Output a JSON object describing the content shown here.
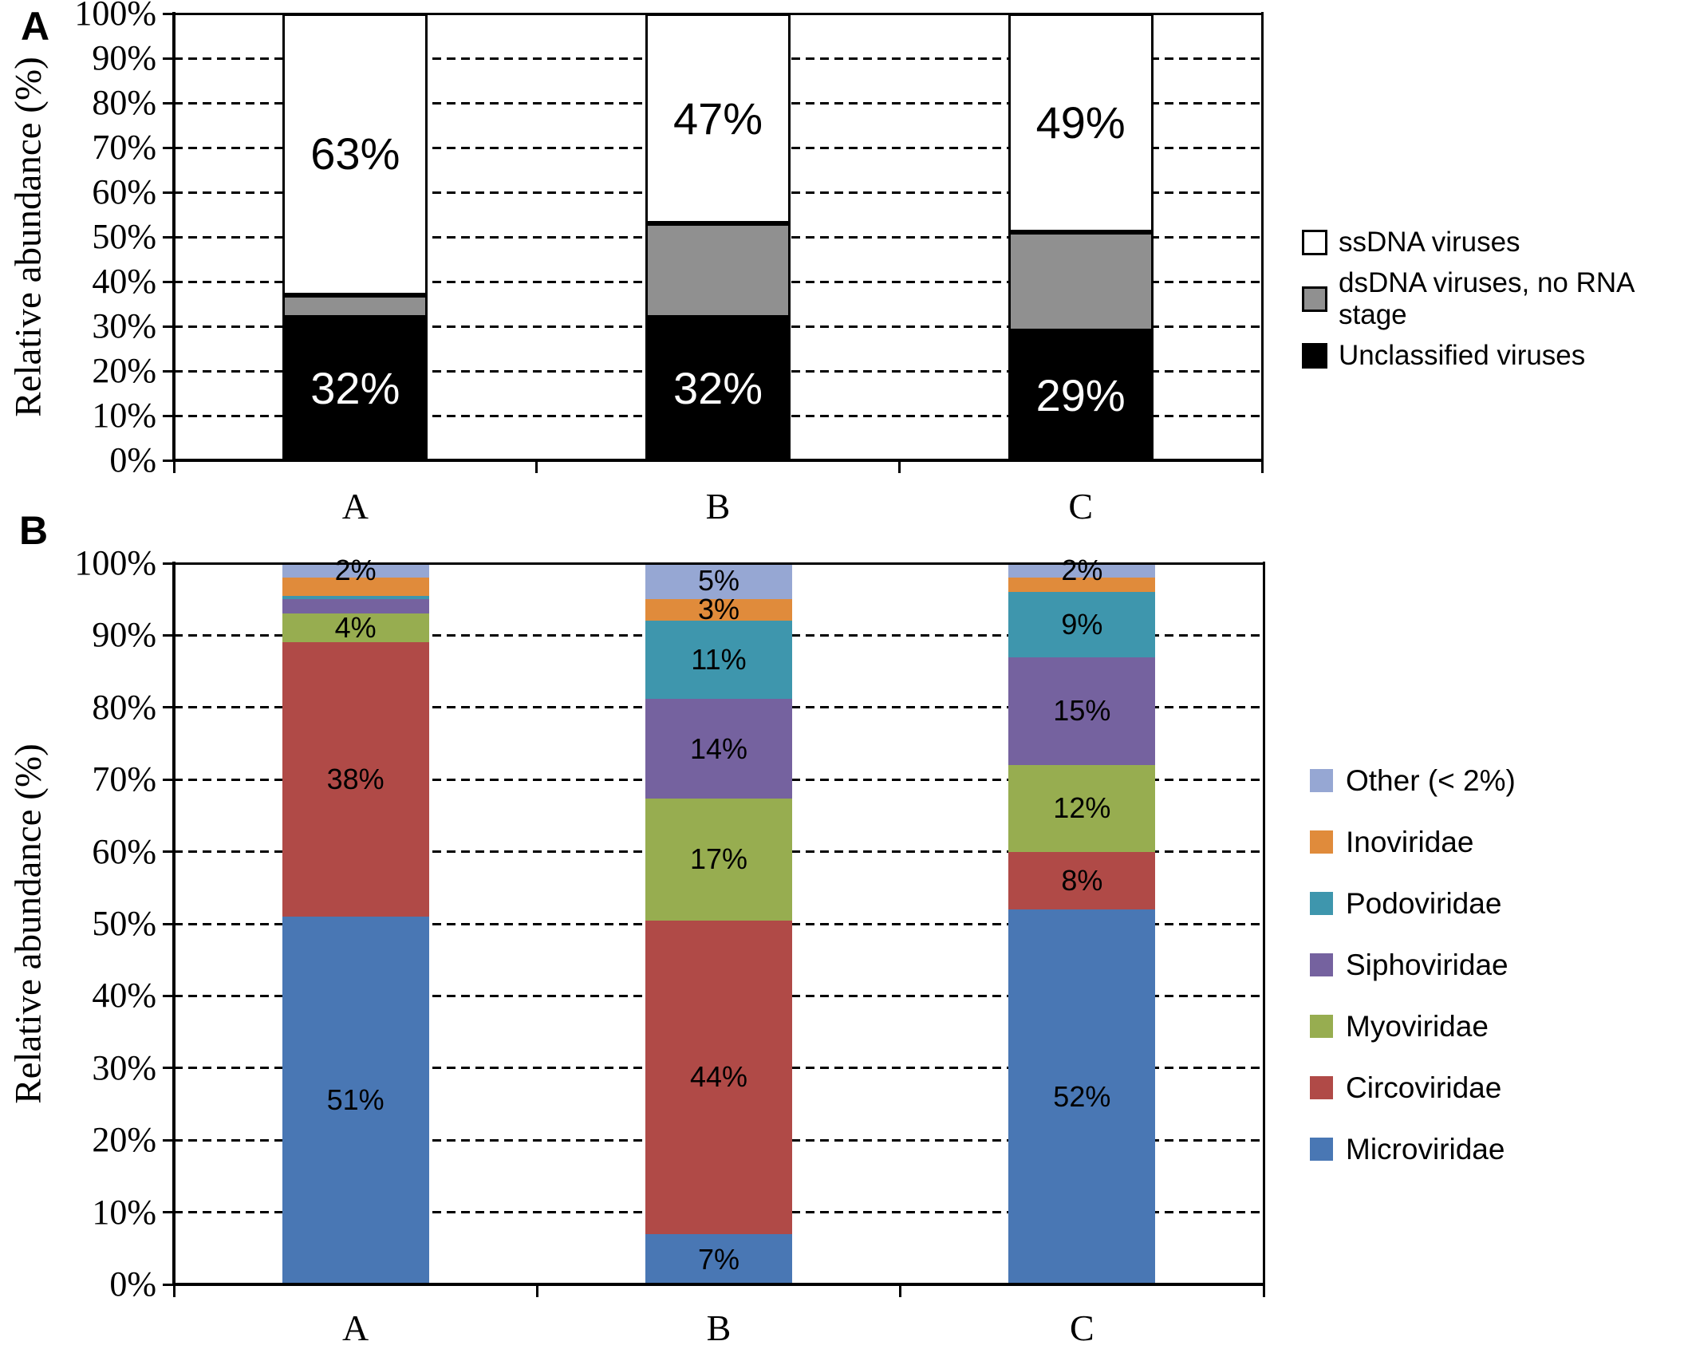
{
  "figure": {
    "panel_a_letter": "A",
    "panel_b_letter": "B"
  },
  "chart_data": [
    {
      "id": "panel-a",
      "type": "bar",
      "stacked": true,
      "ylabel": "Relative abundance (%)",
      "ylim": [
        0,
        100
      ],
      "ytick_step": 10,
      "ytick_labels": [
        "0%",
        "10%",
        "20%",
        "30%",
        "40%",
        "50%",
        "60%",
        "70%",
        "80%",
        "90%",
        "100%"
      ],
      "grid": "dashed horizontal 10-90%",
      "legend_position": "right",
      "categories": [
        "A",
        "B",
        "C"
      ],
      "series": [
        {
          "name": "Unclassified viruses",
          "color": "#000000",
          "values": [
            32,
            32,
            29
          ],
          "labels": [
            "32%",
            "32%",
            "29%"
          ],
          "label_color": "#ffffff"
        },
        {
          "name": "dsDNA viruses, no RNA stage",
          "color": "#909090",
          "values": [
            5,
            21,
            22
          ],
          "labels": [
            "",
            "",
            ""
          ],
          "label_color": "#000000"
        },
        {
          "name": "ssDNA viruses",
          "color": "#ffffff",
          "values": [
            63,
            47,
            49
          ],
          "labels": [
            "63%",
            "47%",
            "49%"
          ],
          "label_color": "#000000"
        }
      ],
      "legend_items": [
        {
          "label": "ssDNA viruses",
          "color": "#ffffff",
          "border": "#000000"
        },
        {
          "label": "dsDNA viruses, no RNA stage",
          "color": "#909090",
          "border": "#000000"
        },
        {
          "label": "Unclassified viruses",
          "color": "#000000",
          "border": "#000000"
        }
      ]
    },
    {
      "id": "panel-b",
      "type": "bar",
      "stacked": true,
      "ylabel": "Relative abundance (%)",
      "ylim": [
        0,
        100
      ],
      "ytick_step": 10,
      "ytick_labels": [
        "0%",
        "10%",
        "20%",
        "30%",
        "40%",
        "50%",
        "60%",
        "70%",
        "80%",
        "90%",
        "100%"
      ],
      "grid": "dashed horizontal 10-90%",
      "legend_position": "right",
      "categories": [
        "A",
        "B",
        "C"
      ],
      "series": [
        {
          "name": "Microviridae",
          "color": "#4977B4",
          "values": [
            51,
            7,
            52
          ],
          "labels": [
            "51%",
            "7%",
            "52%"
          ],
          "label_color": "#000000"
        },
        {
          "name": "Circoviridae",
          "color": "#B04A47",
          "values": [
            38,
            44,
            8
          ],
          "labels": [
            "38%",
            "44%",
            "8%"
          ],
          "label_color": "#000000"
        },
        {
          "name": "Myoviridae",
          "color": "#97AD50",
          "values": [
            4,
            17,
            12
          ],
          "labels": [
            "4%",
            "17%",
            "12%"
          ],
          "label_color": "#000000"
        },
        {
          "name": "Siphoviridae",
          "color": "#75629F",
          "values": [
            2,
            14,
            15
          ],
          "labels": [
            "",
            "14%",
            "15%"
          ],
          "label_color": "#000000"
        },
        {
          "name": "Podoviridae",
          "color": "#3E96AD",
          "values": [
            0.5,
            11,
            9
          ],
          "labels": [
            "",
            "11%",
            "9%"
          ],
          "label_color": "#000000"
        },
        {
          "name": "Inoviridae",
          "color": "#E08B3B",
          "values": [
            2.5,
            3,
            2
          ],
          "labels": [
            "",
            "3%",
            ""
          ],
          "label_color": "#000000"
        },
        {
          "name": "Other (< 2%)",
          "color": "#96A7D3",
          "values": [
            2,
            5,
            2
          ],
          "labels": [
            "2%",
            "5%",
            "2%"
          ],
          "label_color": "#000000"
        }
      ],
      "legend_items": [
        {
          "label": "Other (< 2%)",
          "color": "#96A7D3",
          "border": ""
        },
        {
          "label": "Inoviridae",
          "color": "#E08B3B",
          "border": ""
        },
        {
          "label": "Podoviridae",
          "color": "#3E96AD",
          "border": ""
        },
        {
          "label": "Siphoviridae",
          "color": "#75629F",
          "border": ""
        },
        {
          "label": "Myoviridae",
          "color": "#97AD50",
          "border": ""
        },
        {
          "label": "Circoviridae",
          "color": "#B04A47",
          "border": ""
        },
        {
          "label": "Microviridae",
          "color": "#4977B4",
          "border": ""
        }
      ]
    }
  ]
}
